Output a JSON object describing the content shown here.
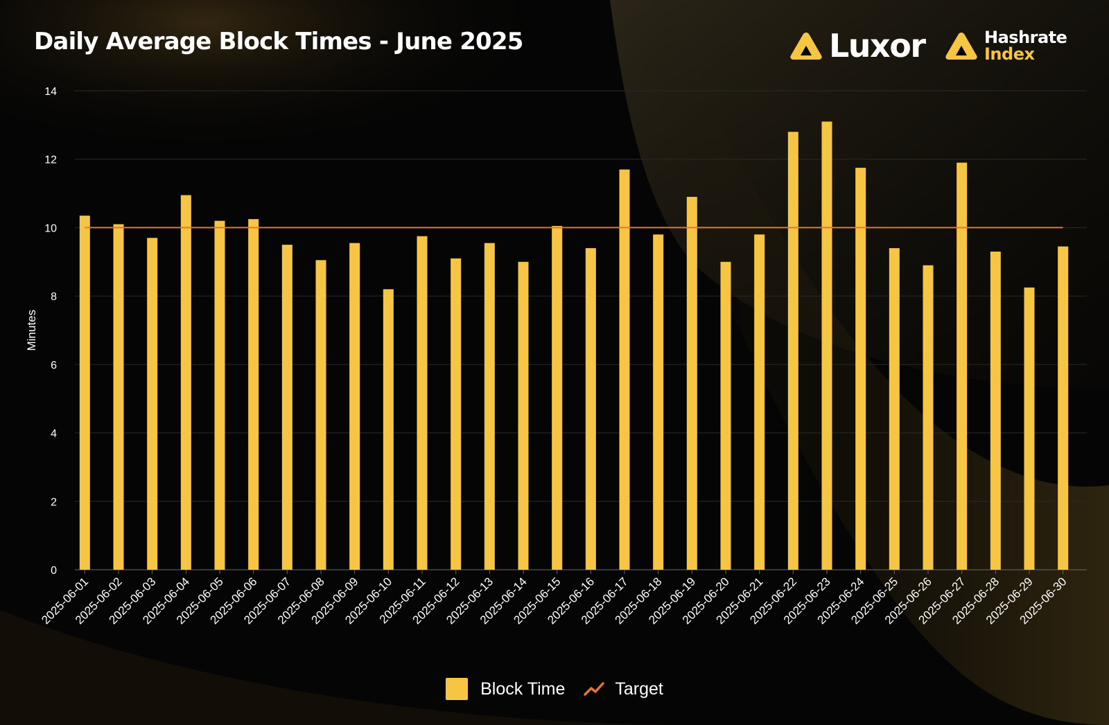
{
  "header": {
    "title": "Daily Average Block Times - June 2025",
    "brand_primary": "Luxor",
    "brand_secondary_line1": "Hashrate",
    "brand_secondary_line2": "Index"
  },
  "colors": {
    "bar": "#f7c544",
    "target_line": "#e8742e",
    "accent": "#f7c544",
    "background": "#050505",
    "grid": "#2a2a2a"
  },
  "chart_data": {
    "type": "bar",
    "title": "Daily Average Block Times - June 2025",
    "xlabel": "",
    "ylabel": "Minutes",
    "ylim": [
      0,
      14
    ],
    "yticks": [
      0,
      2,
      4,
      6,
      8,
      10,
      12,
      14
    ],
    "grid": true,
    "legend_position": "bottom",
    "categories": [
      "2025-06-01",
      "2025-06-02",
      "2025-06-03",
      "2025-06-04",
      "2025-06-05",
      "2025-06-06",
      "2025-06-07",
      "2025-06-08",
      "2025-06-09",
      "2025-06-10",
      "2025-06-11",
      "2025-06-12",
      "2025-06-13",
      "2025-06-14",
      "2025-06-15",
      "2025-06-16",
      "2025-06-17",
      "2025-06-18",
      "2025-06-19",
      "2025-06-20",
      "2025-06-21",
      "2025-06-22",
      "2025-06-23",
      "2025-06-24",
      "2025-06-25",
      "2025-06-26",
      "2025-06-27",
      "2025-06-28",
      "2025-06-29",
      "2025-06-30"
    ],
    "series": [
      {
        "name": "Block Time",
        "type": "bar",
        "values": [
          10.35,
          10.1,
          9.7,
          10.95,
          10.2,
          10.25,
          9.5,
          9.05,
          9.55,
          8.2,
          9.75,
          9.1,
          9.55,
          9.0,
          10.05,
          9.4,
          11.7,
          9.8,
          10.9,
          9.0,
          9.8,
          12.8,
          13.1,
          11.75,
          9.4,
          8.9,
          11.9,
          9.3,
          8.25,
          9.45
        ]
      },
      {
        "name": "Target",
        "type": "line",
        "values": [
          10,
          10,
          10,
          10,
          10,
          10,
          10,
          10,
          10,
          10,
          10,
          10,
          10,
          10,
          10,
          10,
          10,
          10,
          10,
          10,
          10,
          10,
          10,
          10,
          10,
          10,
          10,
          10,
          10,
          10
        ]
      }
    ]
  },
  "legend": {
    "items": [
      {
        "label": "Block Time",
        "icon": "bar-swatch-icon"
      },
      {
        "label": "Target",
        "icon": "line-chart-icon"
      }
    ]
  }
}
